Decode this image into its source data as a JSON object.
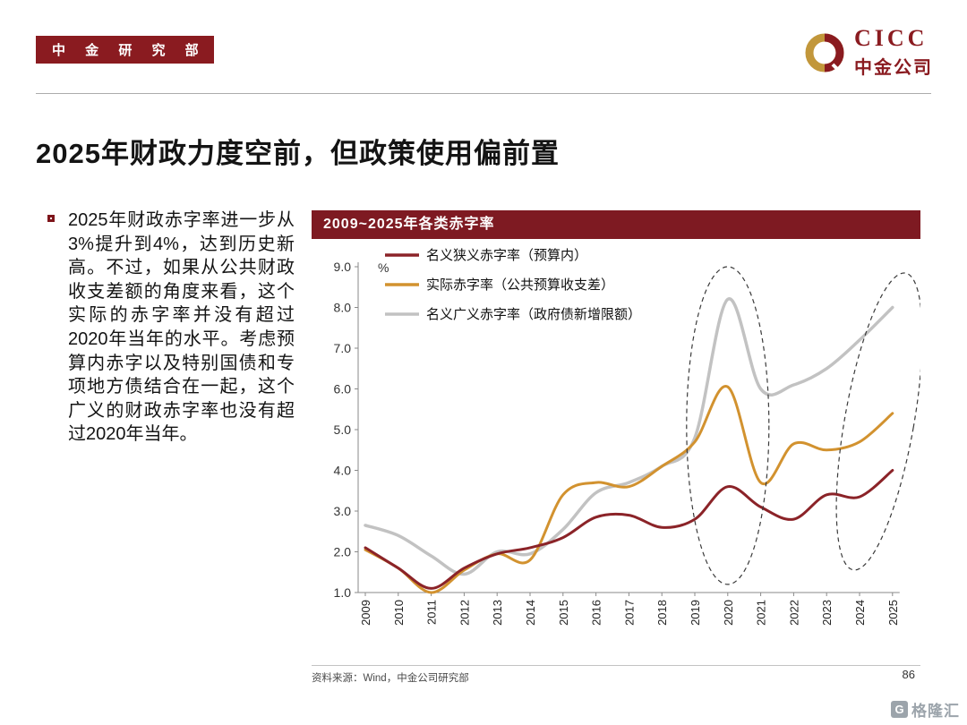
{
  "header": {
    "dept_badge": "中 金 研 究 部",
    "logo_text": "CICC",
    "logo_subtext": "中金公司"
  },
  "theme": {
    "brand_maroon": "#8A1B20",
    "brand_gold": "#C2973B",
    "chart_header_bg": "#7E1A22"
  },
  "title": "2025年财政力度空前，但政策使用偏前置",
  "body_text": "2025年财政赤字率进一步从3%提升到4%，达到历史新高。不过，如果从公共财政收支差额的角度来看，这个实际的赤字率并没有超过2020年当年的水平。考虑预算内赤字以及特别国债和专项地方债结合在一起，这个广义的财政赤字率也没有超过2020年当年。",
  "chart_data": {
    "type": "line",
    "title": "2009~2025年各类赤字率",
    "unit": "%",
    "x": [
      2009,
      2010,
      2011,
      2012,
      2013,
      2014,
      2015,
      2016,
      2017,
      2018,
      2019,
      2020,
      2021,
      2022,
      2023,
      2024,
      2025
    ],
    "ylim": [
      1.0,
      9.0
    ],
    "ytick_step": 1.0,
    "grid": false,
    "legend_position": "top-left",
    "series": [
      {
        "name": "名义狭义赤字率（预算内）",
        "color": "#8B2328",
        "width": 3,
        "values": [
          2.1,
          1.6,
          1.1,
          1.6,
          1.95,
          2.1,
          2.35,
          2.85,
          2.9,
          2.6,
          2.8,
          3.6,
          3.1,
          2.8,
          3.4,
          3.35,
          4.0
        ]
      },
      {
        "name": "实际赤字率（公共预算收支差）",
        "color": "#D2922F",
        "width": 3,
        "values": [
          2.05,
          1.6,
          1.0,
          1.55,
          1.95,
          1.8,
          3.4,
          3.7,
          3.6,
          4.1,
          4.7,
          6.05,
          3.7,
          4.65,
          4.5,
          4.7,
          5.4
        ]
      },
      {
        "name": "名义广义赤字率（政府债新增限额）",
        "color": "#C2C2C2",
        "width": 3.5,
        "values": [
          2.65,
          2.4,
          1.9,
          1.45,
          2.0,
          1.95,
          2.55,
          3.45,
          3.7,
          4.1,
          4.8,
          8.2,
          6.0,
          6.1,
          6.5,
          7.2,
          8.0
        ]
      }
    ],
    "annotations": [
      {
        "type": "ellipse",
        "x_center": 2020,
        "y_center": 5.1,
        "x_radius": 1.25,
        "y_radius": 3.9,
        "rotate_deg": 0
      },
      {
        "type": "ellipse",
        "x_center": 2024.6,
        "y_center": 5.2,
        "x_radius": 1.05,
        "y_radius": 3.7,
        "rotate_deg": 10
      }
    ]
  },
  "footer": {
    "source": "资料来源：Wind，中金公司研究部",
    "page_number": "86",
    "watermark": "格隆汇",
    "watermark_icon_letter": "G"
  }
}
